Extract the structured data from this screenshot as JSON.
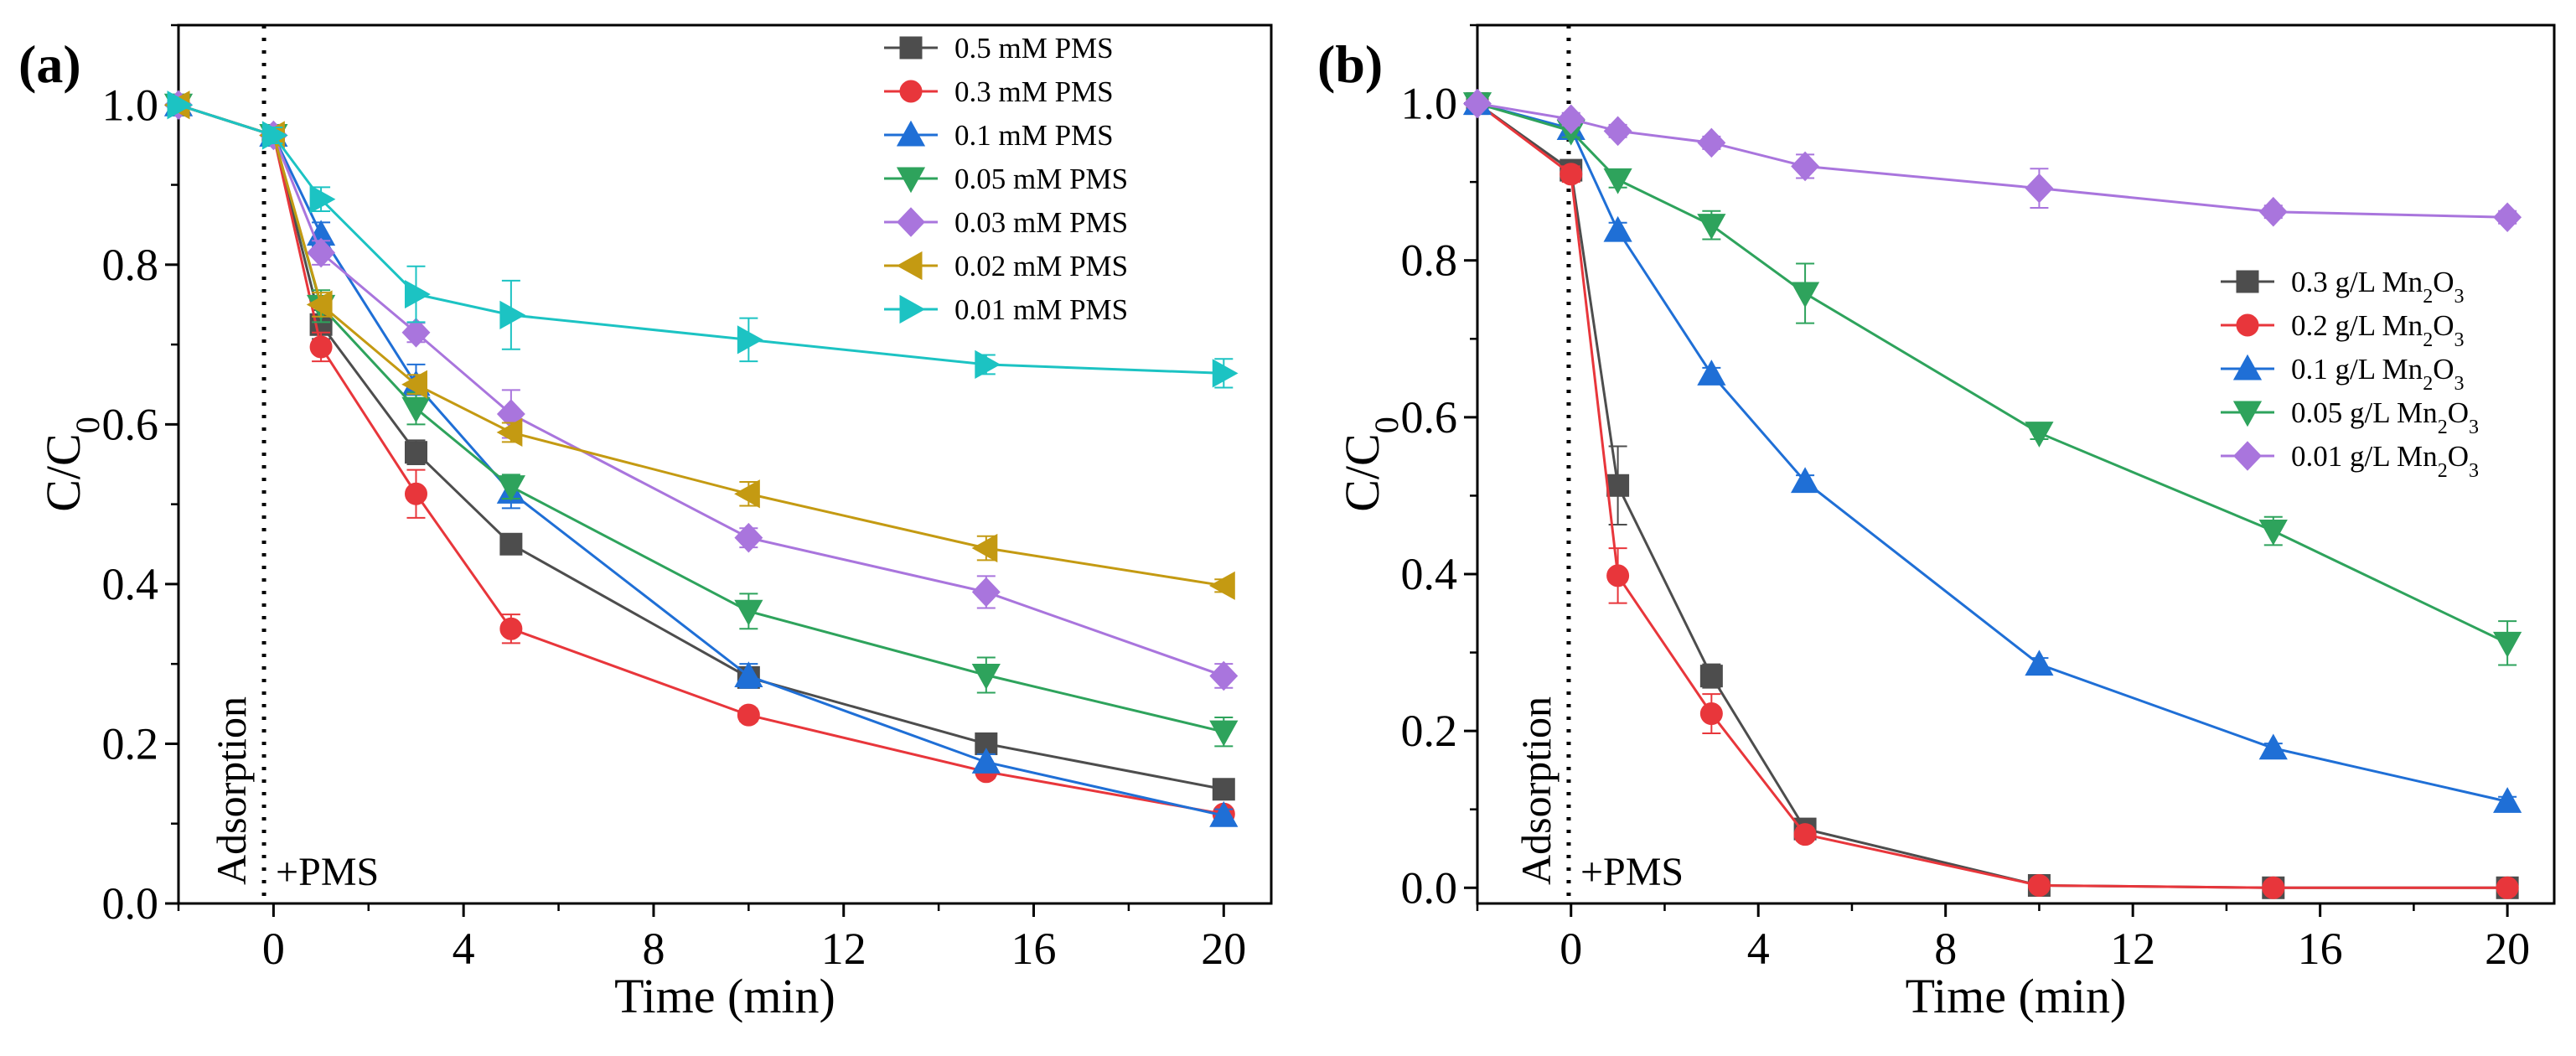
{
  "chart_data": [
    {
      "type": "line",
      "panel_label": "(a)",
      "xlabel": "Time (min)",
      "ylabel_main": "C/C",
      "ylabel_sub": "0",
      "xlim": [
        -2,
        21
      ],
      "ylim": [
        0,
        1.1
      ],
      "x_ticks": [
        0,
        4,
        8,
        12,
        16,
        20
      ],
      "x_tick_labels": [
        "0",
        "4",
        "8",
        "12",
        "16",
        "20"
      ],
      "y_ticks": [
        0,
        0.2,
        0.4,
        0.6,
        0.8,
        1.0
      ],
      "y_tick_labels": [
        "0.0",
        "0.2",
        "0.4",
        "0.6",
        "0.8",
        "1.0"
      ],
      "divider_x": -0.2,
      "annotations": {
        "vertical": "Adsorption",
        "event": "+PMS"
      },
      "legend_position": "top-right",
      "x": [
        -2,
        0,
        1,
        3,
        5,
        10,
        15,
        20
      ],
      "series": [
        {
          "name": "0.5 mM  PMS",
          "label_main": "0.5 mM  PMS",
          "label_sub": "",
          "label_tail": "",
          "color": "#4d4d4d",
          "marker": "square",
          "values": [
            1.0,
            0.962,
            0.725,
            0.565,
            0.45,
            0.283,
            0.2,
            0.143
          ],
          "errors": [
            0,
            0.01,
            0.018,
            0.015,
            0.01,
            0.012,
            0.008,
            0.008
          ]
        },
        {
          "name": "0.3 mM  PMS",
          "label_main": "0.3 mM  PMS",
          "label_sub": "",
          "label_tail": "",
          "color": "#e8363b",
          "marker": "circle",
          "values": [
            1.0,
            0.962,
            0.697,
            0.513,
            0.344,
            0.236,
            0.165,
            0.112
          ],
          "errors": [
            0,
            0.01,
            0.018,
            0.03,
            0.018,
            0.008,
            0.008,
            0.006
          ]
        },
        {
          "name": "0.1 mM  PMS",
          "label_main": "0.1 mM  PMS",
          "label_sub": "",
          "label_tail": "",
          "color": "#1f6fd6",
          "marker": "triangle-up",
          "values": [
            1.0,
            0.962,
            0.838,
            0.65,
            0.515,
            0.285,
            0.177,
            0.11
          ],
          "errors": [
            0,
            0.01,
            0.015,
            0.025,
            0.02,
            0.015,
            0.01,
            0.008
          ]
        },
        {
          "name": "0.05 mM  PMS",
          "label_main": "0.05 mM  PMS",
          "label_sub": "",
          "label_tail": "",
          "color": "#2ea35c",
          "marker": "triangle-down",
          "values": [
            1.0,
            0.962,
            0.748,
            0.62,
            0.522,
            0.366,
            0.286,
            0.215
          ],
          "errors": [
            0,
            0.01,
            0.02,
            0.02,
            0.015,
            0.022,
            0.022,
            0.018
          ]
        },
        {
          "name": "0.03 mM  PMS",
          "label_main": "0.03 mM  PMS",
          "label_sub": "",
          "label_tail": "",
          "color": "#a975dd",
          "marker": "diamond",
          "values": [
            1.0,
            0.962,
            0.815,
            0.715,
            0.613,
            0.458,
            0.39,
            0.285
          ],
          "errors": [
            0,
            0.01,
            0.015,
            0.012,
            0.03,
            0.012,
            0.02,
            0.015
          ]
        },
        {
          "name": "0.02 mM  PMS",
          "label_main": "0.02 mM  PMS",
          "label_sub": "",
          "label_tail": "",
          "color": "#c49a12",
          "marker": "triangle-left",
          "values": [
            1.0,
            0.962,
            0.75,
            0.65,
            0.59,
            0.513,
            0.445,
            0.398
          ],
          "errors": [
            0,
            0.01,
            0.015,
            0.012,
            0.012,
            0.015,
            0.015,
            0.008
          ]
        },
        {
          "name": "0.01 mM  PMS",
          "label_main": "0.01 mM  PMS",
          "label_sub": "",
          "label_tail": "",
          "color": "#1cc3c3",
          "marker": "triangle-right",
          "values": [
            1.0,
            0.962,
            0.882,
            0.763,
            0.737,
            0.706,
            0.675,
            0.664
          ],
          "errors": [
            0,
            0.01,
            0.015,
            0.035,
            0.043,
            0.027,
            0.012,
            0.018
          ]
        }
      ]
    },
    {
      "type": "line",
      "panel_label": "(b)",
      "xlabel": "Time (min)",
      "ylabel_main": "C/C",
      "ylabel_sub": "0",
      "xlim": [
        -2,
        21
      ],
      "ylim": [
        -0.02,
        1.1
      ],
      "x_ticks": [
        0,
        4,
        8,
        12,
        16,
        20
      ],
      "x_tick_labels": [
        "0",
        "4",
        "8",
        "12",
        "16",
        "20"
      ],
      "y_ticks": [
        0,
        0.2,
        0.4,
        0.6,
        0.8,
        1.0
      ],
      "y_tick_labels": [
        "0.0",
        "0.2",
        "0.4",
        "0.6",
        "0.8",
        "1.0"
      ],
      "divider_x": -0.05,
      "annotations": {
        "vertical": "Adsorption",
        "event": "+PMS"
      },
      "legend_position": "center-right",
      "x": [
        -2,
        0,
        1,
        3,
        5,
        10,
        15,
        20
      ],
      "series": [
        {
          "name": "0.3 g/L  Mn2O3",
          "label_main": "0.3 g/L  Mn",
          "label_sub": "2",
          "label_tail": "O",
          "label_sub2": "3",
          "color": "#4d4d4d",
          "marker": "square",
          "values": [
            1.0,
            0.915,
            0.513,
            0.27,
            0.075,
            0.003,
            0.0,
            0.0
          ],
          "errors": [
            0,
            0.01,
            0.05,
            0.015,
            0.008,
            0.005,
            0.003,
            0.003
          ]
        },
        {
          "name": "0.2 g/L  Mn2O3",
          "label_main": "0.2 g/L  Mn",
          "label_sub": "2",
          "label_tail": "O",
          "label_sub2": "3",
          "color": "#e8363b",
          "marker": "circle",
          "values": [
            1.0,
            0.91,
            0.398,
            0.222,
            0.068,
            0.003,
            0.0,
            0.0
          ],
          "errors": [
            0,
            0.01,
            0.035,
            0.025,
            0.008,
            0.005,
            0.003,
            0.003
          ]
        },
        {
          "name": "0.1 g/L  Mn2O3",
          "label_main": "0.1 g/L  Mn",
          "label_sub": "2",
          "label_tail": "O",
          "label_sub2": "3",
          "color": "#1f6fd6",
          "marker": "triangle-up",
          "values": [
            1.0,
            0.968,
            0.838,
            0.655,
            0.518,
            0.285,
            0.178,
            0.11
          ],
          "errors": [
            0,
            0.008,
            0.01,
            0.008,
            0.008,
            0.008,
            0.006,
            0.006
          ]
        },
        {
          "name": "0.05 g/L  Mn2O3",
          "label_main": "0.05 g/L  Mn",
          "label_sub": "2",
          "label_tail": "O",
          "label_sub2": "3",
          "color": "#2ea35c",
          "marker": "triangle-down",
          "values": [
            1.0,
            0.965,
            0.903,
            0.845,
            0.758,
            0.58,
            0.455,
            0.312
          ],
          "errors": [
            0,
            0.008,
            0.01,
            0.018,
            0.038,
            0.008,
            0.018,
            0.028
          ]
        },
        {
          "name": "0.01 g/L  Mn2O3",
          "label_main": "0.01 g/L  Mn",
          "label_sub": "2",
          "label_tail": "O",
          "label_sub2": "3",
          "color": "#a975dd",
          "marker": "diamond",
          "values": [
            1.0,
            0.98,
            0.965,
            0.95,
            0.92,
            0.892,
            0.862,
            0.855
          ],
          "errors": [
            0,
            0.008,
            0.008,
            0.008,
            0.015,
            0.025,
            0.008,
            0.008
          ]
        }
      ]
    }
  ]
}
